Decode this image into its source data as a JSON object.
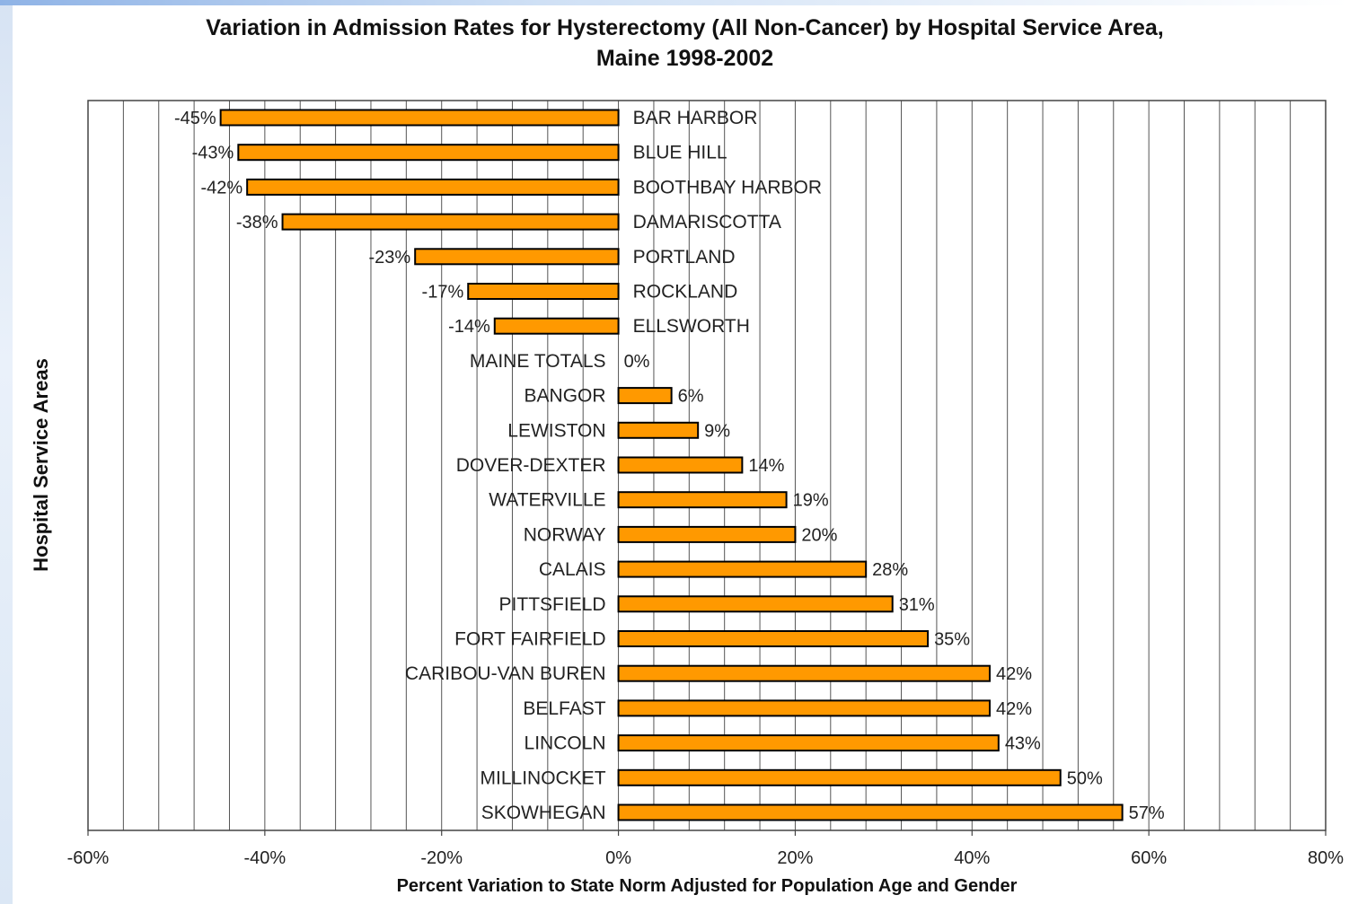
{
  "chart_data": {
    "type": "bar",
    "orientation": "horizontal",
    "title": "Variation in Admission Rates for Hysterectomy (All Non-Cancer) by Hospital Service Area,",
    "subtitle": "Maine 1998-2002",
    "xlabel": "Percent Variation to State Norm Adjusted for Population Age and Gender",
    "ylabel": "Hospital Service Areas",
    "xlim": [
      -60,
      80
    ],
    "xticks": [
      -60,
      -40,
      -20,
      0,
      20,
      40,
      60,
      80
    ],
    "tick_labels": [
      "-60%",
      "-40%",
      "-20%",
      "0%",
      "20%",
      "40%",
      "60%",
      "80%"
    ],
    "grid": true,
    "bar_color": "#ff9900",
    "categories": [
      "BAR HARBOR",
      "BLUE HILL",
      "BOOTHBAY HARBOR",
      "DAMARISCOTTA",
      "PORTLAND",
      "ROCKLAND",
      "ELLSWORTH",
      "MAINE TOTALS",
      "BANGOR",
      "LEWISTON",
      "DOVER-DEXTER",
      "WATERVILLE",
      "NORWAY",
      "CALAIS",
      "PITTSFIELD",
      "FORT FAIRFIELD",
      "CARIBOU-VAN BUREN",
      "BELFAST",
      "LINCOLN",
      "MILLINOCKET",
      "SKOWHEGAN"
    ],
    "values": [
      -45,
      -43,
      -42,
      -38,
      -23,
      -17,
      -14,
      0,
      6,
      9,
      14,
      19,
      20,
      28,
      31,
      35,
      42,
      42,
      43,
      50,
      57
    ],
    "data_labels": [
      "-45%",
      "-43%",
      "-42%",
      "-38%",
      "-23%",
      "-17%",
      "-14%",
      "0%",
      "6%",
      "9%",
      "14%",
      "19%",
      "20%",
      "28%",
      "31%",
      "35%",
      "42%",
      "42%",
      "43%",
      "50%",
      "57%"
    ]
  }
}
